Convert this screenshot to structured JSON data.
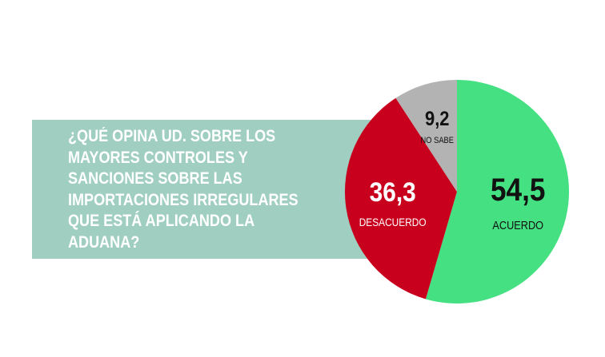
{
  "question": "¿QUÉ OPINA UD. SOBRE LOS\nMAYORES CONTROLES Y\nSANCIONES SOBRE LAS\nIMPORTACIONES IRREGULARES\nQUE ESTÁ APLICANDO LA\nADUANA?",
  "colors": {
    "box": "#a0cfc1",
    "acuerdo": "#45e082",
    "desacuerdo": "#c8001e",
    "no_sabe": "#b3b3b3"
  },
  "chart_data": {
    "type": "pie",
    "title": "¿QUÉ OPINA UD. SOBRE LOS MAYORES CONTROLES Y SANCIONES SOBRE LAS IMPORTACIONES IRREGULARES QUE ESTÁ APLICANDO LA ADUANA?",
    "slices": [
      {
        "label": "ACUERDO",
        "value": 54.5,
        "display": "54,5",
        "color": "#45e082"
      },
      {
        "label": "DESACUERDO",
        "value": 36.3,
        "display": "36,3",
        "color": "#c8001e"
      },
      {
        "label": "NO SABE",
        "value": 9.2,
        "display": "9,2",
        "color": "#b3b3b3"
      }
    ]
  }
}
